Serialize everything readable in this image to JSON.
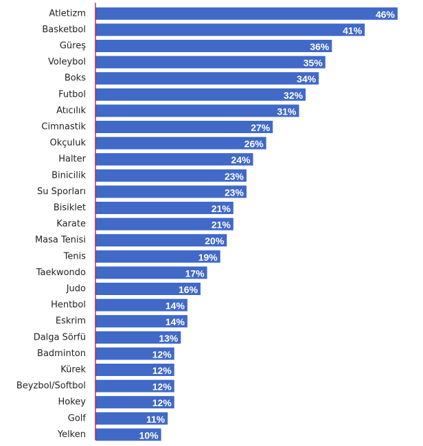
{
  "chart_data": {
    "type": "bar",
    "orientation": "horizontal",
    "title": "",
    "xlabel": "",
    "ylabel": "",
    "categories": [
      "Atletizm",
      "Basketbol",
      "Güreş",
      "Voleybol",
      "Boks",
      "Futbol",
      "Atıcılık",
      "Cimnastik",
      "Okçuluk",
      "Halter",
      "Binicilik",
      "Su Sporları",
      "Bisiklet",
      "Karate",
      "Masa Tenisi",
      "Tenis",
      "Taekwondo",
      "Judo",
      "Hentbol",
      "Eskrim",
      "Dalga Sörfü",
      "Badminton",
      "Kürek",
      "Beyzbol/Softbol",
      "Hokey",
      "Golf",
      "Yelken"
    ],
    "values": [
      46,
      41,
      36,
      35,
      34,
      32,
      31,
      27,
      26,
      24,
      23,
      23,
      21,
      21,
      20,
      19,
      17,
      16,
      14,
      14,
      13,
      12,
      12,
      12,
      12,
      11,
      10
    ],
    "value_labels": [
      "46%",
      "41%",
      "36%",
      "35%",
      "34%",
      "32%",
      "31%",
      "27%",
      "26%",
      "24%",
      "23%",
      "23%",
      "21%",
      "21%",
      "20%",
      "19%",
      "17%",
      "16%",
      "14%",
      "14%",
      "13%",
      "12%",
      "12%",
      "12%",
      "12%",
      "11%",
      "10%"
    ],
    "unit": "%",
    "xlim": [
      0,
      46
    ],
    "grid": false,
    "legend": "none",
    "colors": {
      "bar": "#4169c8",
      "axis": "#c4161c",
      "label_text": "#222222",
      "value_text": "#ffffff"
    }
  }
}
